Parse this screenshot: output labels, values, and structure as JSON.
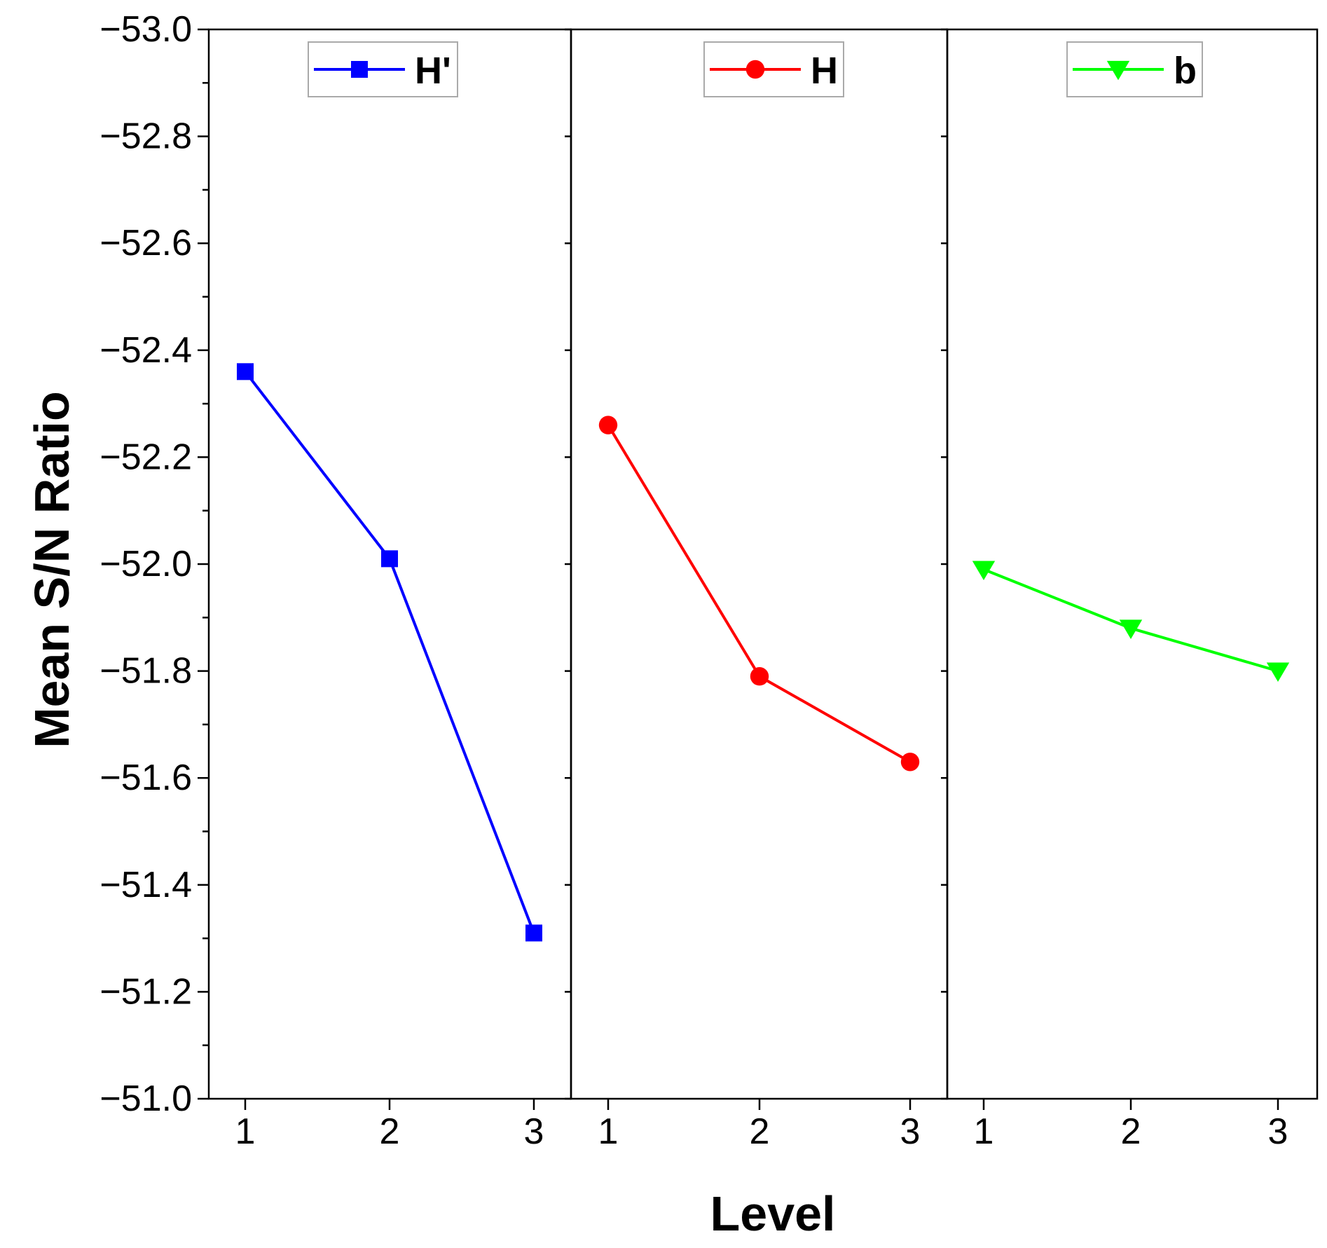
{
  "chart_data": {
    "type": "line",
    "ylabel": "Mean S/N Ratio",
    "xlabel": "Level",
    "ylim": [
      -53.0,
      -51.0
    ],
    "y_axis_inverted": true,
    "y_ticks": [
      -53.0,
      -52.8,
      -52.6,
      -52.4,
      -52.2,
      -52.0,
      -51.8,
      -51.6,
      -51.4,
      -51.2,
      -51.0
    ],
    "y_tick_labels": [
      "−53.0",
      "−52.8",
      "−52.6",
      "−52.4",
      "−52.2",
      "−52.0",
      "−51.8",
      "−51.6",
      "−51.4",
      "−51.2",
      "−51.0"
    ],
    "x_categories": [
      "1",
      "2",
      "3"
    ],
    "legend_position": "top-center of each panel",
    "panels": [
      {
        "series": {
          "name": "H'",
          "color": "#0000ff",
          "marker": "square",
          "values": [
            -52.36,
            -52.01,
            -51.31
          ]
        }
      },
      {
        "series": {
          "name": "H",
          "color": "#ff0000",
          "marker": "circle",
          "values": [
            -52.26,
            -51.79,
            -51.63
          ]
        }
      },
      {
        "series": {
          "name": "b",
          "color": "#00ff00",
          "marker": "triangle-down",
          "values": [
            -51.99,
            -51.88,
            -51.8
          ]
        }
      }
    ]
  }
}
